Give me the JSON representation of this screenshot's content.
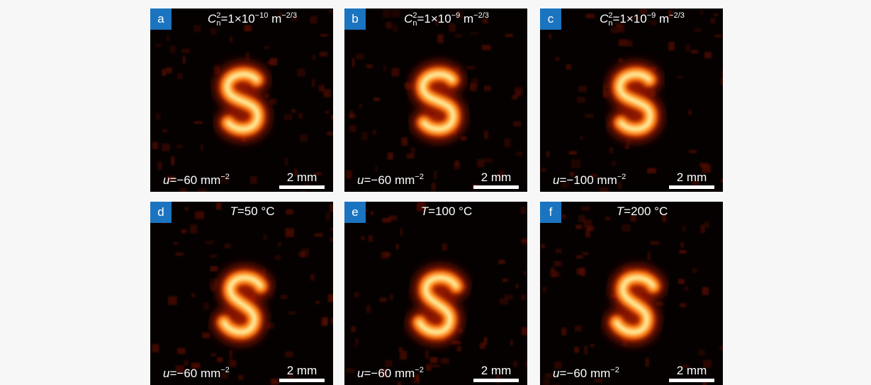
{
  "panels": [
    {
      "label": "a",
      "top": [
        {
          "text": "C",
          "style": "italic"
        },
        {
          "sup": "2",
          "sub": "n"
        },
        {
          "text": "=1×10"
        },
        {
          "text": "−10",
          "style": "sup"
        },
        {
          "text": " m"
        },
        {
          "text": "−2/3",
          "style": "sup"
        }
      ],
      "bottom": [
        {
          "text": "u",
          "style": "italic"
        },
        {
          "text": "=−60 mm"
        },
        {
          "text": "−2",
          "style": "sup"
        }
      ],
      "scale": "2 mm"
    },
    {
      "label": "b",
      "top": [
        {
          "text": "C",
          "style": "italic"
        },
        {
          "sup": "2",
          "sub": "n"
        },
        {
          "text": "=1×10"
        },
        {
          "text": "−9",
          "style": "sup"
        },
        {
          "text": " m"
        },
        {
          "text": "−2/3",
          "style": "sup"
        }
      ],
      "bottom": [
        {
          "text": "u",
          "style": "italic"
        },
        {
          "text": "=−60 mm"
        },
        {
          "text": "−2",
          "style": "sup"
        }
      ],
      "scale": "2 mm"
    },
    {
      "label": "c",
      "top": [
        {
          "text": "C",
          "style": "italic"
        },
        {
          "sup": "2",
          "sub": "n"
        },
        {
          "text": "=1×10"
        },
        {
          "text": "−9",
          "style": "sup"
        },
        {
          "text": " m"
        },
        {
          "text": "−2/3",
          "style": "sup"
        }
      ],
      "bottom": [
        {
          "text": "u",
          "style": "italic"
        },
        {
          "text": "=−100 mm"
        },
        {
          "text": "−2",
          "style": "sup"
        }
      ],
      "scale": "2 mm"
    },
    {
      "label": "d",
      "top": [
        {
          "text": "T",
          "style": "italic"
        },
        {
          "text": "=50 °C"
        }
      ],
      "bottom": [
        {
          "text": "u",
          "style": "italic"
        },
        {
          "text": "=−60 mm"
        },
        {
          "text": "−2",
          "style": "sup"
        }
      ],
      "scale": "2 mm"
    },
    {
      "label": "e",
      "top": [
        {
          "text": "T",
          "style": "italic"
        },
        {
          "text": "=100 °C"
        }
      ],
      "bottom": [
        {
          "text": "u",
          "style": "italic"
        },
        {
          "text": "=−60 mm"
        },
        {
          "text": "−2",
          "style": "sup"
        }
      ],
      "scale": "2 mm"
    },
    {
      "label": "f",
      "top": [
        {
          "text": "T",
          "style": "italic"
        },
        {
          "text": "=200 °C"
        }
      ],
      "bottom": [
        {
          "text": "u",
          "style": "italic"
        },
        {
          "text": "=−60 mm"
        },
        {
          "text": "−2",
          "style": "sup"
        }
      ],
      "scale": "2 mm"
    }
  ]
}
